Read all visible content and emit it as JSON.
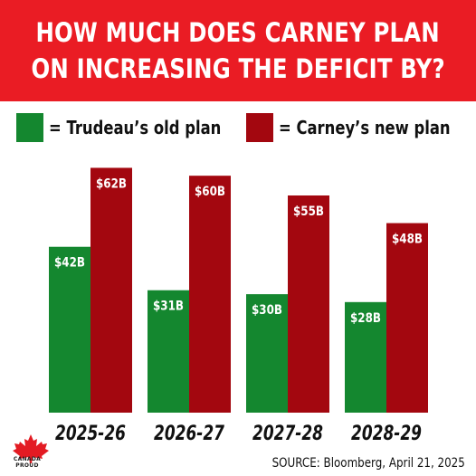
{
  "header": {
    "line1": "HOW MUCH DOES CARNEY PLAN",
    "line2": "ON INCREASING THE DEFICIT BY?"
  },
  "legend": [
    {
      "label": "= Trudeau’s old plan",
      "color": "#14872f"
    },
    {
      "label": "= Carney’s new plan",
      "color": "#a3070f"
    }
  ],
  "logo": {
    "text": "CANADA PROUD"
  },
  "source": "SOURCE: Bloomberg, April 21, 2025",
  "chart_data": {
    "type": "bar",
    "categories": [
      "2025-26",
      "2026-27",
      "2027-28",
      "2028-29"
    ],
    "series": [
      {
        "name": "Trudeau’s old plan",
        "values": [
          42,
          31,
          30,
          28
        ],
        "labels": [
          "$42B",
          "$31B",
          "$30B",
          "$28B"
        ],
        "color": "#14872f"
      },
      {
        "name": "Carney’s new plan",
        "values": [
          62,
          60,
          55,
          48
        ],
        "labels": [
          "$62B",
          "$60B",
          "$55B",
          "$48B"
        ],
        "color": "#a3070f"
      }
    ],
    "title": "HOW MUCH DOES CARNEY PLAN ON INCREASING THE DEFICIT BY?",
    "xlabel": "",
    "ylabel": "",
    "ylim": [
      0,
      66
    ],
    "grid": false,
    "legend_position": "top"
  }
}
